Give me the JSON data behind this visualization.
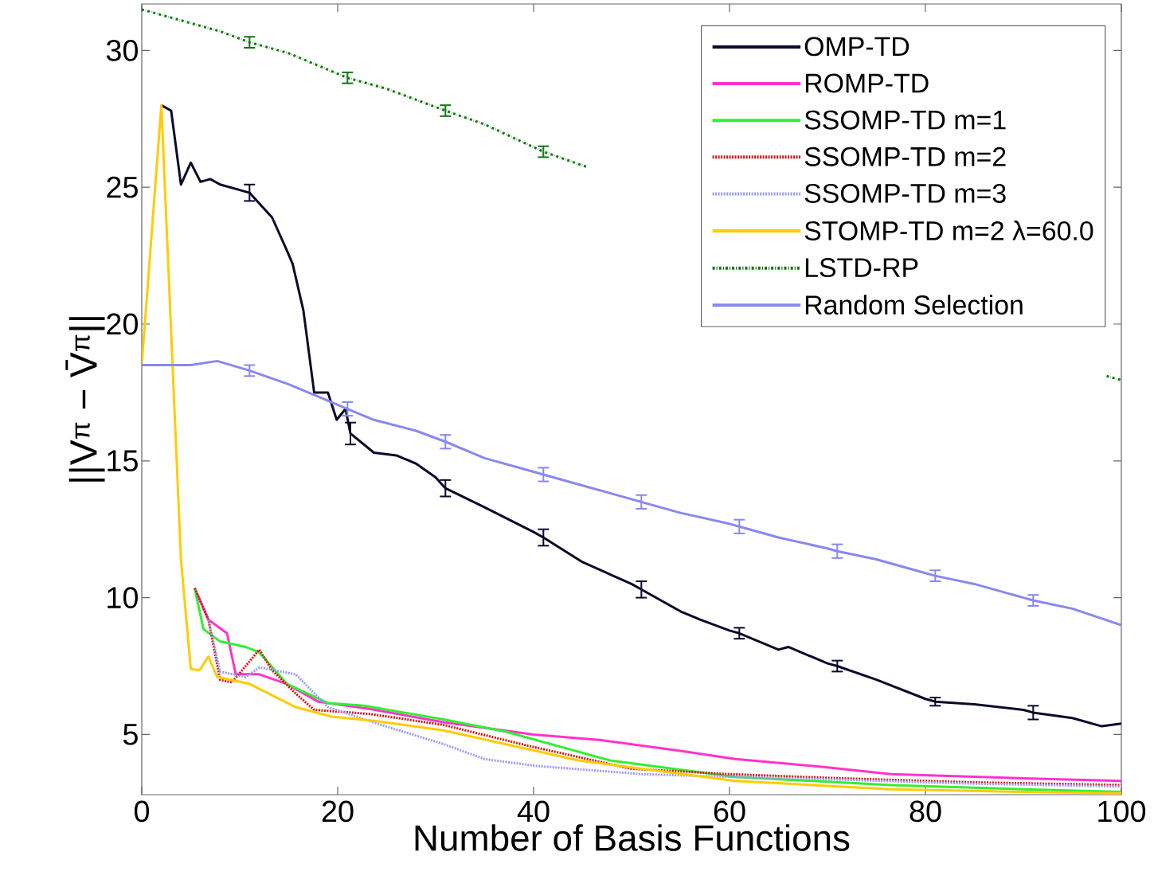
{
  "chart_data": {
    "type": "line",
    "xlabel": "Number of Basis Functions",
    "ylabel": "||V$^{π}$ − V̄$^{π}$||",
    "xlim": [
      0,
      100
    ],
    "ylim": [
      2.8,
      31.7
    ],
    "xticks": [
      0,
      20,
      40,
      60,
      80,
      100
    ],
    "yticks": [
      5,
      10,
      15,
      20,
      25,
      30
    ],
    "grid": false,
    "legend": "top right",
    "marker": "none",
    "series": [
      {
        "name": "OMP-TD",
        "color": "#0a0a2a",
        "line_style": "solid",
        "x": [
          2,
          3,
          4,
          5,
          6,
          7,
          8,
          10,
          11,
          13.3,
          14.8,
          15.4,
          16.5,
          17.6,
          19,
          19.9,
          20.8,
          21.3,
          23.7,
          26,
          28,
          30,
          31,
          35,
          40,
          41,
          45,
          50,
          51,
          55,
          57,
          60,
          61,
          65,
          66,
          70,
          71,
          75,
          80,
          81,
          85,
          90,
          91,
          95,
          98,
          100
        ],
        "values": [
          28.0,
          27.8,
          25.1,
          25.9,
          25.2,
          25.3,
          25.1,
          24.9,
          24.8,
          23.9,
          22.7,
          22.2,
          20.5,
          17.5,
          17.5,
          16.5,
          16.9,
          16.0,
          15.3,
          15.2,
          14.9,
          14.4,
          14.0,
          13.3,
          12.4,
          12.2,
          11.3,
          10.5,
          10.3,
          9.5,
          9.2,
          8.8,
          8.7,
          8.1,
          8.2,
          7.6,
          7.5,
          7.0,
          6.3,
          6.2,
          6.1,
          5.9,
          5.8,
          5.6,
          5.3,
          5.4
        ],
        "errors": [
          null,
          null,
          null,
          null,
          null,
          null,
          null,
          null,
          0.3,
          null,
          null,
          null,
          null,
          null,
          null,
          null,
          null,
          0.4,
          null,
          null,
          null,
          null,
          0.3,
          null,
          null,
          0.3,
          null,
          null,
          0.3,
          null,
          null,
          null,
          0.2,
          null,
          null,
          null,
          0.2,
          null,
          null,
          0.15,
          null,
          null,
          0.25,
          null,
          null,
          null
        ]
      },
      {
        "name": "ROMP-TD",
        "color": "#ff33cc",
        "line_style": "solid",
        "x": [
          5.4,
          6.8,
          8.7,
          9.6,
          12,
          14.8,
          18,
          23,
          30.8,
          40,
          46.7,
          55,
          60.6,
          70,
          76.5,
          90,
          100
        ],
        "values": [
          10.35,
          9.2,
          8.7,
          7.2,
          7.2,
          6.85,
          6.2,
          5.95,
          5.45,
          5.0,
          4.8,
          4.4,
          4.1,
          3.8,
          3.55,
          3.4,
          3.3
        ]
      },
      {
        "name": "SSOMP-TD m=1",
        "color": "#33ee33",
        "line_style": "solid",
        "x": [
          5.4,
          6.3,
          8,
          10.6,
          12,
          14.8,
          19,
          22.7,
          30.8,
          37.2,
          47.8,
          60.6,
          76.5,
          90,
          100
        ],
        "values": [
          10.35,
          8.85,
          8.4,
          8.2,
          8.0,
          6.85,
          6.15,
          6.05,
          5.55,
          5.1,
          4.05,
          3.45,
          3.15,
          3.0,
          2.9
        ]
      },
      {
        "name": "SSOMP-TD m=2",
        "color": "#dd1111",
        "line_style": "dotted",
        "x": [
          5.4,
          6.8,
          8,
          9.2,
          12,
          13.3,
          15.7,
          17.6,
          23.3,
          30.8,
          39.3,
          49.9,
          60,
          71.2,
          85,
          100
        ],
        "values": [
          10.35,
          9.2,
          7.0,
          6.9,
          8.1,
          7.35,
          6.5,
          5.9,
          5.75,
          5.35,
          4.6,
          3.75,
          3.55,
          3.4,
          3.25,
          3.15
        ]
      },
      {
        "name": "SSOMP-TD m=3",
        "color": "#9999ff",
        "line_style": "dotted",
        "x": [
          6.8,
          8,
          10.6,
          12,
          15.7,
          19,
          24,
          30.8,
          35,
          40.3,
          51,
          60,
          71,
          85,
          100
        ],
        "values": [
          9.2,
          7.3,
          7.1,
          7.45,
          7.2,
          6.0,
          5.4,
          4.65,
          4.1,
          3.85,
          3.55,
          3.45,
          3.35,
          3.2,
          3.1
        ]
      },
      {
        "name": "STOMP-TD m=2 λ=60.0",
        "color": "#ffcc00",
        "line_style": "solid",
        "x": [
          0,
          2,
          4,
          5,
          5.9,
          6.8,
          7.7,
          11,
          15.7,
          19.4,
          23.7,
          30.8,
          44.6,
          60.6,
          76.5,
          90,
          100
        ],
        "values": [
          18.5,
          28.0,
          11.4,
          7.4,
          7.35,
          7.85,
          7.1,
          6.85,
          6.0,
          5.65,
          5.5,
          5.15,
          4.05,
          3.3,
          3.0,
          2.9,
          2.85
        ]
      },
      {
        "name": "LSTD-RP",
        "color": "#117711",
        "line_style": "dashed",
        "x": [
          0,
          5,
          8,
          11,
          15,
          21,
          25,
          31,
          35,
          41,
          45.4,
          70,
          98.5,
          100
        ],
        "values": [
          31.5,
          31.0,
          30.7,
          30.3,
          29.9,
          29.0,
          28.6,
          27.8,
          27.3,
          26.3,
          25.75,
          null,
          18.1,
          17.95
        ],
        "errors": [
          null,
          null,
          null,
          0.2,
          null,
          0.2,
          null,
          0.2,
          null,
          0.2,
          null,
          null,
          null,
          null
        ]
      },
      {
        "name": "Random Selection",
        "color": "#8888ee",
        "line_style": "solid",
        "x": [
          0,
          5,
          7.7,
          11,
          15,
          18,
          21,
          23.7,
          28,
          31,
          35,
          40,
          41,
          45,
          50,
          51,
          55,
          60,
          61,
          65,
          70,
          71,
          75,
          80,
          81,
          85,
          90,
          91,
          95,
          100
        ],
        "values": [
          18.5,
          18.5,
          18.65,
          18.3,
          17.8,
          17.35,
          16.9,
          16.5,
          16.1,
          15.7,
          15.1,
          14.6,
          14.5,
          14.1,
          13.6,
          13.5,
          13.1,
          12.7,
          12.6,
          12.2,
          11.8,
          11.7,
          11.4,
          10.9,
          10.8,
          10.5,
          10.0,
          9.9,
          9.6,
          9.0
        ],
        "errors": [
          null,
          null,
          null,
          0.2,
          null,
          null,
          0.25,
          null,
          null,
          0.25,
          null,
          null,
          0.25,
          null,
          null,
          0.25,
          null,
          null,
          0.25,
          null,
          null,
          0.25,
          null,
          null,
          0.2,
          null,
          null,
          0.2,
          null,
          null
        ]
      }
    ]
  }
}
